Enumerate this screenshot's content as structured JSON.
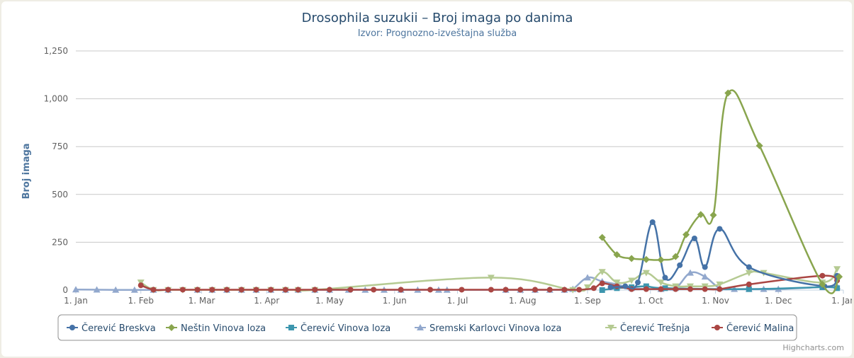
{
  "chart_data": {
    "type": "line",
    "title": "Drosophila suzukii – Broj imaga po danima",
    "subtitle": "Izvor: Prognozno-izveštajna služba",
    "ylabel": "Broj imaga",
    "ylim": [
      0,
      1250
    ],
    "yticks": [
      0,
      250,
      500,
      750,
      1000,
      1250
    ],
    "ytick_labels": [
      "0",
      "250",
      "500",
      "750",
      "1,000",
      "1,250"
    ],
    "xlim": [
      0,
      366
    ],
    "xticks": [
      {
        "day": 0,
        "label": "1. Jan"
      },
      {
        "day": 31,
        "label": "1. Feb"
      },
      {
        "day": 60,
        "label": "1. Mar"
      },
      {
        "day": 91,
        "label": "1. Apr"
      },
      {
        "day": 121,
        "label": "1. May"
      },
      {
        "day": 152,
        "label": "1. Jun"
      },
      {
        "day": 182,
        "label": "1. Jul"
      },
      {
        "day": 213,
        "label": "1. Aug"
      },
      {
        "day": 244,
        "label": "1. Sep"
      },
      {
        "day": 274,
        "label": "1. Oct"
      },
      {
        "day": 305,
        "label": "1. Nov"
      },
      {
        "day": 335,
        "label": "1. Dec"
      },
      {
        "day": 366,
        "label": "1. Jan"
      }
    ],
    "grid": true,
    "legend_position": "bottom",
    "credits": "Highcharts.com",
    "series": [
      {
        "name": "Čerević Breskva",
        "color": "#4572a7",
        "marker": "circle",
        "points": [
          [
            255,
            15
          ],
          [
            262,
            20
          ],
          [
            268,
            40
          ],
          [
            275,
            355
          ],
          [
            281,
            65
          ],
          [
            288,
            130
          ],
          [
            295,
            270
          ],
          [
            300,
            120
          ],
          [
            307,
            320
          ],
          [
            321,
            120
          ],
          [
            357,
            20
          ],
          [
            363,
            75
          ]
        ]
      },
      {
        "name": "Neštin Vinova loza",
        "color": "#89a54e",
        "marker": "diamond",
        "points": [
          [
            251,
            275
          ],
          [
            258,
            185
          ],
          [
            265,
            165
          ],
          [
            272,
            160
          ],
          [
            279,
            158
          ],
          [
            286,
            175
          ],
          [
            291,
            290
          ],
          [
            298,
            395
          ],
          [
            304,
            392
          ],
          [
            311,
            1030
          ],
          [
            326,
            755
          ],
          [
            356,
            30
          ],
          [
            364,
            70
          ]
        ]
      },
      {
        "name": "Čerević Vinova loza",
        "color": "#3d96ae",
        "marker": "square",
        "points": [
          [
            251,
            0
          ],
          [
            258,
            10
          ],
          [
            265,
            15
          ],
          [
            272,
            20
          ],
          [
            281,
            10
          ],
          [
            321,
            5
          ],
          [
            356,
            15
          ],
          [
            363,
            10
          ]
        ]
      },
      {
        "name": "Sremski Karlovci Vinova loza",
        "color": "#92a8cd",
        "marker": "triangle",
        "points": [
          [
            0,
            3
          ],
          [
            10,
            2
          ],
          [
            19,
            1
          ],
          [
            28,
            1
          ],
          [
            37,
            1
          ],
          [
            44,
            1
          ],
          [
            58,
            1
          ],
          [
            65,
            1
          ],
          [
            72,
            1
          ],
          [
            79,
            1
          ],
          [
            86,
            1
          ],
          [
            93,
            1
          ],
          [
            100,
            1
          ],
          [
            106,
            1
          ],
          [
            114,
            1
          ],
          [
            121,
            1
          ],
          [
            130,
            1
          ],
          [
            138,
            1
          ],
          [
            147,
            1
          ],
          [
            155,
            1
          ],
          [
            163,
            1
          ],
          [
            173,
            1
          ],
          [
            177,
            1
          ],
          [
            205,
            1
          ],
          [
            212,
            1
          ],
          [
            219,
            1
          ],
          [
            226,
            1
          ],
          [
            233,
            1
          ],
          [
            237,
            5
          ],
          [
            244,
            65
          ],
          [
            251,
            45
          ],
          [
            258,
            30
          ],
          [
            265,
            10
          ],
          [
            279,
            5
          ],
          [
            286,
            10
          ],
          [
            293,
            90
          ],
          [
            300,
            70
          ],
          [
            307,
            10
          ],
          [
            314,
            5
          ],
          [
            321,
            5
          ],
          [
            328,
            5
          ],
          [
            335,
            5
          ],
          [
            363,
            20
          ]
        ]
      },
      {
        "name": "Čerević Trešnja",
        "color": "#b5ca92",
        "marker": "triangle-down",
        "points": [
          [
            31,
            40
          ],
          [
            37,
            1
          ],
          [
            44,
            1
          ],
          [
            51,
            1
          ],
          [
            58,
            1
          ],
          [
            65,
            1
          ],
          [
            72,
            1
          ],
          [
            79,
            1
          ],
          [
            86,
            1
          ],
          [
            93,
            1
          ],
          [
            100,
            1
          ],
          [
            106,
            1
          ],
          [
            114,
            1
          ],
          [
            198,
            65
          ],
          [
            237,
            1
          ],
          [
            244,
            15
          ],
          [
            251,
            95
          ],
          [
            258,
            40
          ],
          [
            265,
            50
          ],
          [
            272,
            90
          ],
          [
            279,
            40
          ],
          [
            286,
            20
          ],
          [
            293,
            20
          ],
          [
            300,
            20
          ],
          [
            307,
            30
          ],
          [
            321,
            90
          ],
          [
            328,
            90
          ],
          [
            356,
            40
          ],
          [
            363,
            110
          ]
        ]
      },
      {
        "name": "Čerević Malina",
        "color": "#aa4643",
        "marker": "circle",
        "points": [
          [
            31,
            25
          ],
          [
            37,
            2
          ],
          [
            44,
            2
          ],
          [
            51,
            2
          ],
          [
            58,
            2
          ],
          [
            65,
            2
          ],
          [
            72,
            2
          ],
          [
            79,
            2
          ],
          [
            86,
            2
          ],
          [
            93,
            2
          ],
          [
            100,
            2
          ],
          [
            106,
            2
          ],
          [
            114,
            2
          ],
          [
            121,
            2
          ],
          [
            131,
            2
          ],
          [
            142,
            2
          ],
          [
            155,
            2
          ],
          [
            169,
            2
          ],
          [
            184,
            2
          ],
          [
            198,
            2
          ],
          [
            205,
            2
          ],
          [
            212,
            2
          ],
          [
            219,
            2
          ],
          [
            226,
            2
          ],
          [
            233,
            2
          ],
          [
            240,
            2
          ],
          [
            247,
            10
          ],
          [
            251,
            35
          ],
          [
            258,
            20
          ],
          [
            265,
            5
          ],
          [
            272,
            5
          ],
          [
            279,
            5
          ],
          [
            286,
            5
          ],
          [
            293,
            5
          ],
          [
            300,
            5
          ],
          [
            307,
            5
          ],
          [
            321,
            30
          ],
          [
            356,
            75
          ],
          [
            363,
            50
          ]
        ]
      }
    ]
  }
}
